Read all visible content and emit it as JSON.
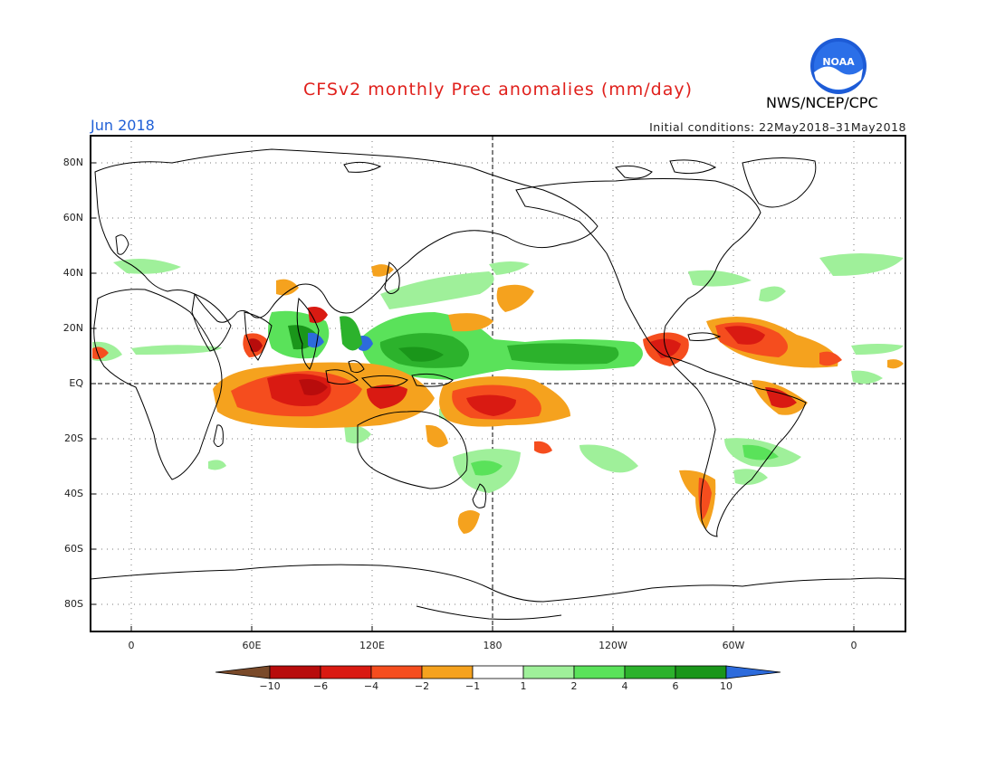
{
  "title": "CFSv2 monthly Prec anomalies (mm/day)",
  "month_label": "Jun 2018",
  "agency": "NWS/NCEP/CPC",
  "logo_text": "NOAA",
  "initial_conditions": "Initial conditions: 22May2018–31May2018",
  "lat_labels": [
    "80N",
    "60N",
    "40N",
    "20N",
    "EQ",
    "20S",
    "40S",
    "60S",
    "80S"
  ],
  "lon_labels": [
    "0",
    "60E",
    "120E",
    "180",
    "120W",
    "60W",
    "0"
  ],
  "colorbar": {
    "labels": [
      "−10",
      "−6",
      "−4",
      "−2",
      "−1",
      "1",
      "2",
      "4",
      "6",
      "10"
    ],
    "colors": [
      "#7a4a2a",
      "#b80c0c",
      "#d91a12",
      "#f54d1e",
      "#f5a21e",
      "#ffffff",
      "#9ff09a",
      "#5ae25a",
      "#2cb22c",
      "#1a961a",
      "#2d6bdc"
    ]
  },
  "colors": {
    "title": "#e0201c",
    "month": "#1f5fd6"
  }
}
